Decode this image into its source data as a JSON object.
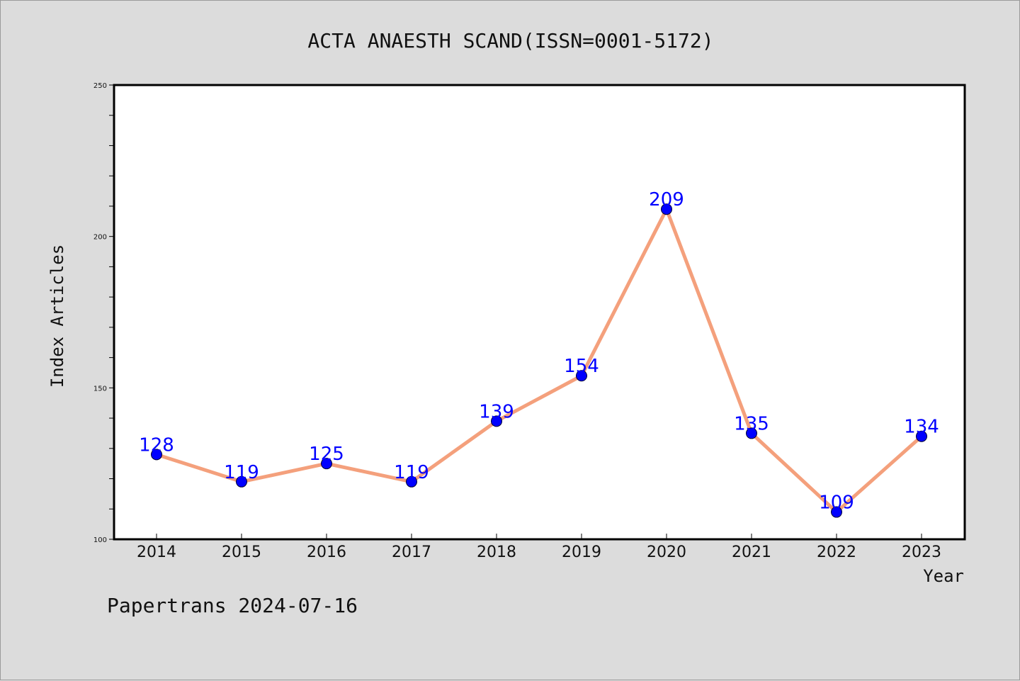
{
  "footer_text": "Papertrans 2024-07-16",
  "colors": {
    "background": "#dcdcdc",
    "plot_background": "#ffffff",
    "line": "#f4a07c",
    "marker": "#0000ff",
    "data_label": "#0000ff"
  },
  "chart_data": {
    "type": "line",
    "title": "ACTA ANAESTH SCAND(ISSN=0001-5172)",
    "xlabel": "Year",
    "ylabel": "Index Articles",
    "categories": [
      "2014",
      "2015",
      "2016",
      "2017",
      "2018",
      "2019",
      "2020",
      "2021",
      "2022",
      "2023"
    ],
    "series": [
      {
        "values": [
          128,
          119,
          125,
          119,
          139,
          154,
          209,
          135,
          109,
          134
        ]
      }
    ],
    "data_labels": [
      "128",
      "119",
      "125",
      "119",
      "139",
      "154",
      "209",
      "135",
      "109",
      "134"
    ],
    "ylim": [
      100,
      250
    ],
    "yticks": [
      "100",
      "150",
      "200",
      "250"
    ],
    "grid": false,
    "legend": "none"
  }
}
